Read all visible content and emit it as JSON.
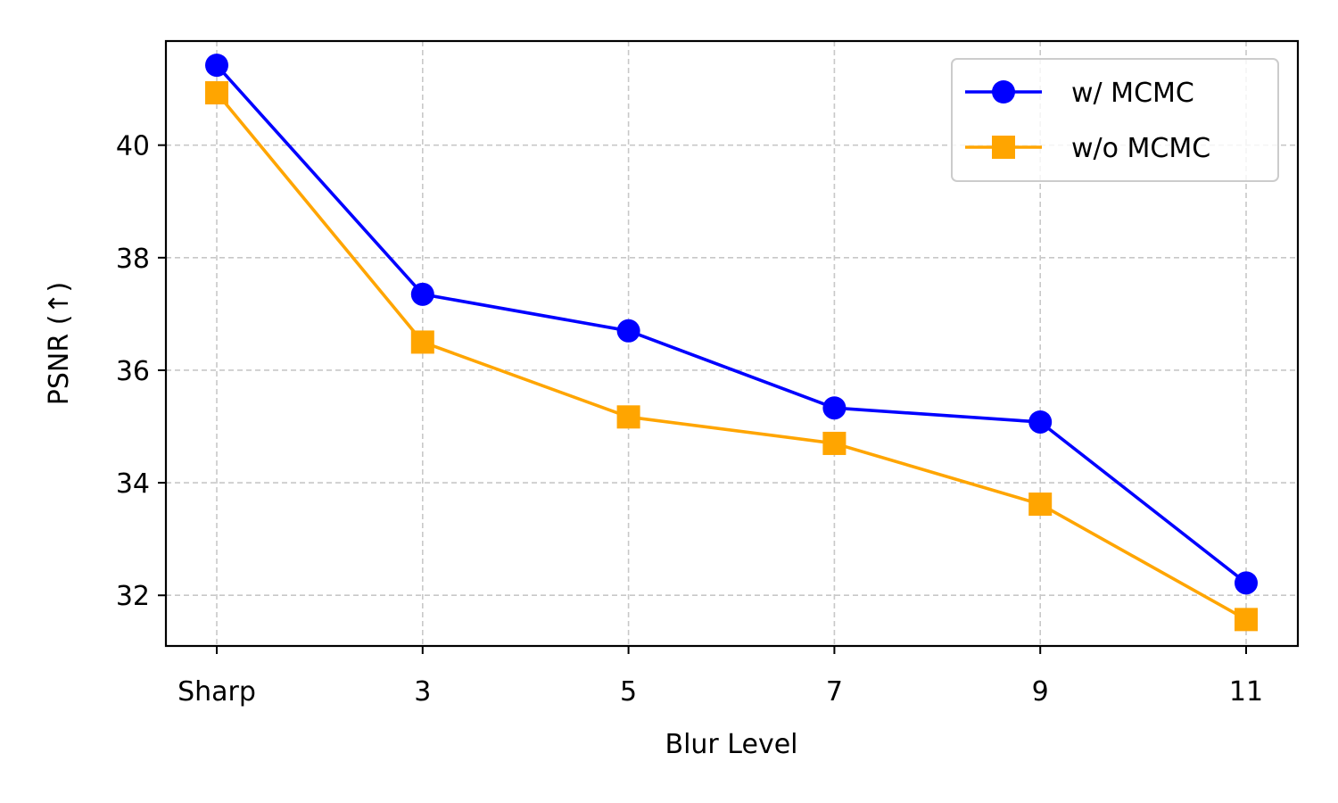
{
  "chart_data": {
    "type": "line",
    "categories": [
      "Sharp",
      "3",
      "5",
      "7",
      "9",
      "11"
    ],
    "xlabel": "Blur Level",
    "ylabel": "PSNR (↑)",
    "ylim": [
      31.1,
      41.85
    ],
    "yticks": [
      32,
      34,
      36,
      38,
      40
    ],
    "grid": true,
    "legend_position": "top-right",
    "series": [
      {
        "name": "w/ MCMC",
        "color": "#0000ff",
        "marker": "circle",
        "values": [
          41.42,
          37.35,
          36.7,
          35.33,
          35.08,
          32.22
        ]
      },
      {
        "name": "w/o MCMC",
        "color": "#ffa500",
        "marker": "square",
        "values": [
          40.93,
          36.5,
          35.17,
          34.7,
          33.62,
          31.57
        ]
      }
    ]
  }
}
